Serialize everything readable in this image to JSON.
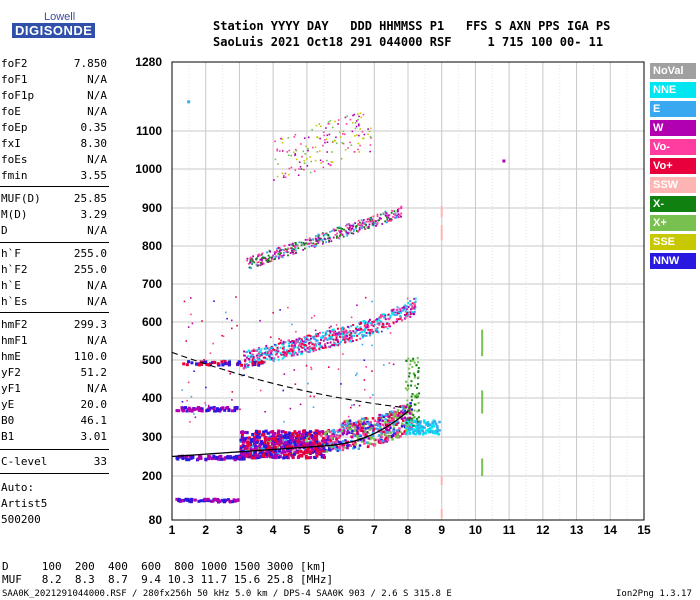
{
  "logo": {
    "line1": "Lowell",
    "line2": "DIGISONDE"
  },
  "header": {
    "line1": "Station YYYY DAY   DDD HHMMSS P1   FFS S AXN PPS IGA PS",
    "line2": "SaoLuis 2021 Oct18 291 044000 RSF     1 715 100 00- 11"
  },
  "params": [
    {
      "label": "foF2",
      "value": "7.850"
    },
    {
      "label": "foF1",
      "value": "N/A"
    },
    {
      "label": "foF1p",
      "value": "N/A"
    },
    {
      "label": "foE",
      "value": "N/A"
    },
    {
      "label": "foEp",
      "value": "0.35"
    },
    {
      "label": "fxI",
      "value": "8.30"
    },
    {
      "label": "foEs",
      "value": "N/A"
    },
    {
      "label": "fmin",
      "value": "3.55"
    },
    {
      "label": "MUF(D)",
      "value": "25.85"
    },
    {
      "label": "M(D)",
      "value": "3.29"
    },
    {
      "label": "D",
      "value": "N/A"
    },
    {
      "label": "h`F",
      "value": "255.0"
    },
    {
      "label": "h`F2",
      "value": "255.0"
    },
    {
      "label": "h`E",
      "value": "N/A"
    },
    {
      "label": "h`Es",
      "value": "N/A"
    },
    {
      "label": "hmF2",
      "value": "299.3"
    },
    {
      "label": "hmF1",
      "value": "N/A"
    },
    {
      "label": "hmE",
      "value": "110.0"
    },
    {
      "label": "yF2",
      "value": "51.2"
    },
    {
      "label": "yF1",
      "value": "N/A"
    },
    {
      "label": "yE",
      "value": "20.0"
    },
    {
      "label": "B0",
      "value": "46.1"
    },
    {
      "label": "B1",
      "value": "3.01"
    },
    {
      "label": "C-level",
      "value": "33"
    }
  ],
  "autoscaling": {
    "line1": "Auto:",
    "line2": "Artist5",
    "line3": "500200"
  },
  "legend": [
    {
      "label": "NoVal",
      "color": "#a0a0a0"
    },
    {
      "label": "NNE",
      "color": "#00e6f0"
    },
    {
      "label": "E",
      "color": "#3aa8f0"
    },
    {
      "label": "W",
      "color": "#b000b0"
    },
    {
      "label": "Vo-",
      "color": "#ff3ca0"
    },
    {
      "label": "Vo+",
      "color": "#e8003c"
    },
    {
      "label": "SSW",
      "color": "#ffb4b4"
    },
    {
      "label": "X-",
      "color": "#108010"
    },
    {
      "label": "X+",
      "color": "#78c050"
    },
    {
      "label": "SSE",
      "color": "#c8c800"
    },
    {
      "label": "NNW",
      "color": "#2818e0"
    }
  ],
  "bottom": {
    "line1": "D     100  200  400  600  800 1000 1500 3000 [km]",
    "line2": "MUF   8.2  8.3  8.7  9.4 10.3 11.7 15.6 25.8 [MHz]",
    "footer_left": "SAA0K_2021291044000.RSF / 280fx256h 50 kHz 5.0 km / DPS-4 SAA0K 903 / 2.6 S 315.8 E",
    "footer_right": "Ion2Png 1.3.17"
  },
  "chart_data": {
    "type": "scatter",
    "xlim": [
      1,
      15
    ],
    "ylim": [
      80,
      1280
    ],
    "x_ticks": [
      1,
      2,
      3,
      4,
      5,
      6,
      7,
      8,
      9,
      10,
      11,
      12,
      13,
      14,
      15
    ],
    "y_ticks": [
      80,
      200,
      300,
      400,
      500,
      600,
      700,
      800,
      900,
      1000,
      1100,
      1280
    ],
    "grid": true,
    "traces": [
      {
        "name": "F2 O-trace",
        "x_range": [
          3.0,
          8.1
        ],
        "h_range": [
          240,
          330
        ],
        "color": "Vo-"
      },
      {
        "name": "F2 2nd hop",
        "x_range": [
          3.1,
          8.2
        ],
        "h_range": [
          480,
          700
        ],
        "color": "Vo-"
      },
      {
        "name": "F2 3rd hop",
        "x_range": [
          3.2,
          7.8
        ],
        "h_range": [
          740,
          900
        ],
        "color": "Vo-"
      },
      {
        "name": "X-trace",
        "x_range": [
          7.8,
          8.3
        ],
        "h_range": [
          330,
          510
        ],
        "color": "X-"
      },
      {
        "name": "E region echo",
        "x_range": [
          1.1,
          3.0
        ],
        "h_range": [
          130,
          140
        ],
        "color": "NNW"
      },
      {
        "name": "spread echoes",
        "x_range": [
          1.1,
          8.0
        ],
        "h_range": [
          240,
          500
        ],
        "color": "NNW"
      }
    ],
    "profile_curves": [
      {
        "name": "true height profile",
        "style": "solid"
      },
      {
        "name": "topside extrapolation",
        "style": "dashed"
      }
    ],
    "markers": [
      {
        "x": 9.0,
        "h": [
          175,
          200
        ],
        "color": "SSW"
      },
      {
        "x": 9.0,
        "h": [
          875,
          905
        ],
        "color": "SSW"
      },
      {
        "x": 9.0,
        "h": [
          815,
          855
        ],
        "color": "SSW"
      },
      {
        "x": 9.0,
        "h": [
          85,
          110
        ],
        "color": "SSW"
      },
      {
        "x": 10.2,
        "h": [
          510,
          580
        ],
        "color": "X+"
      },
      {
        "x": 10.2,
        "h": [
          360,
          420
        ],
        "color": "X+"
      },
      {
        "x": 10.2,
        "h": [
          200,
          245
        ],
        "color": "X+"
      }
    ]
  }
}
